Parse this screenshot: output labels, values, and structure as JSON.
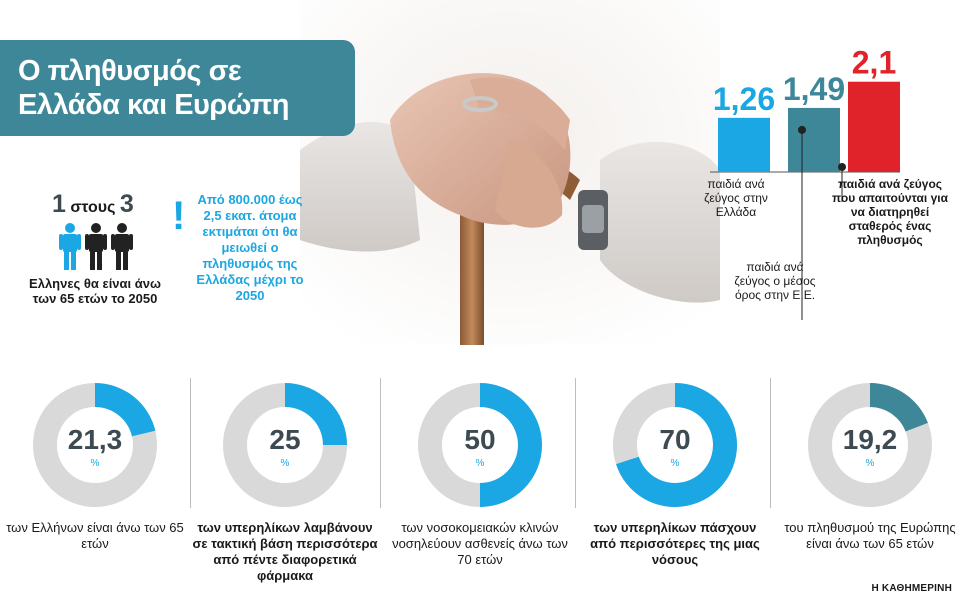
{
  "title": "Ο πληθυσμός σε Ελλάδα και Ευρώπη",
  "stat": {
    "num1": "1",
    "word": "στους",
    "num3": "3",
    "caption": "Ελληνες θα είναι άνω των 65 ετών το 2050"
  },
  "note": {
    "mark": "!",
    "text": "Από 800.000 έως 2,5 εκατ. άτομα εκτιμάται ότι θα μειωθεί ο πληθυσμός της Ελλάδας μέχρι το 2050"
  },
  "colors": {
    "blue": "#1ba7e3",
    "teal": "#3d8799",
    "red": "#e0232b",
    "donut_bg": "#d9d9d9",
    "donut_teal": "#3d8799"
  },
  "chart_data": [
    {
      "type": "bar",
      "categories": [
        "παιδιά ανά ζεύγος στην Ελλάδα",
        "παιδιά ανά ζεύγος ο μέσος όρος στην Ε.Ε.",
        "παιδιά ανά ζεύγος που απαιτούνται για να διατηρηθεί σταθερός ένας πληθυσμός"
      ],
      "values": [
        1.26,
        1.49,
        2.1
      ],
      "value_labels": [
        "1,26",
        "1,49",
        "2,1"
      ],
      "colors": [
        "#1ba7e3",
        "#3d8799",
        "#e0232b"
      ]
    },
    {
      "type": "pie",
      "donuts": [
        {
          "value": 21.3,
          "label": "21,3",
          "unit": "%",
          "caption": "των Ελλήνων είναι άνω των 65 ετών",
          "color": "#1ba7e3",
          "bold": false
        },
        {
          "value": 25,
          "label": "25",
          "unit": "%",
          "caption": "των υπερηλίκων λαμβάνουν σε τακτική βάση περισσότερα από πέντε διαφορετικά φάρμακα",
          "color": "#1ba7e3",
          "bold": true
        },
        {
          "value": 50,
          "label": "50",
          "unit": "%",
          "caption": "των νοσοκομειακών κλινών νοσηλεύουν ασθενείς άνω των 70 ετών",
          "color": "#1ba7e3",
          "bold": false
        },
        {
          "value": 70,
          "label": "70",
          "unit": "%",
          "caption": "των υπερηλίκων πάσχουν από περισσότερες της μιας νόσους",
          "color": "#1ba7e3",
          "bold": true
        },
        {
          "value": 19.2,
          "label": "19,2",
          "unit": "%",
          "caption": "του πληθυσμού της Ευρώπης είναι άνω των 65 ετών",
          "color": "#3d8799",
          "bold": false
        }
      ]
    }
  ],
  "source": "Η ΚΑΘΗΜΕΡΙΝΗ"
}
